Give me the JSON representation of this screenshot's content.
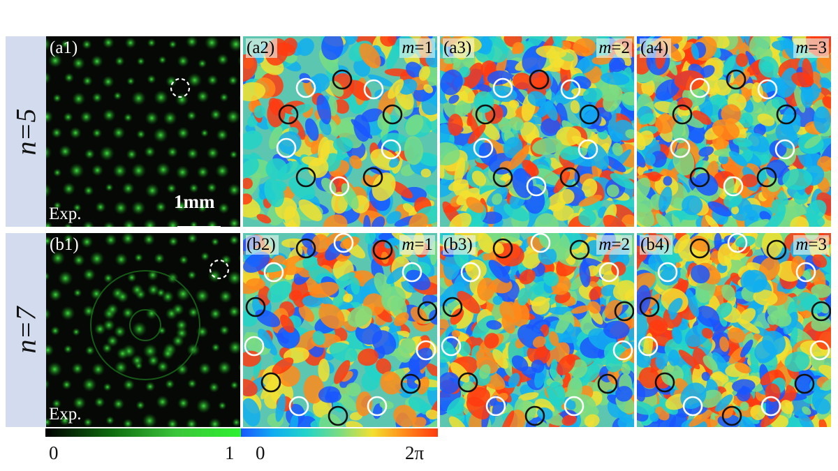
{
  "rows": [
    {
      "label": "n=5",
      "panels": [
        {
          "id": "a1",
          "label": "(a1)",
          "kind": "intensity",
          "m_label": "",
          "exp_label": "Exp.",
          "scale_label": "1mm"
        },
        {
          "id": "a2",
          "label": "(a2)",
          "kind": "phase",
          "m_label": "=1",
          "m_value": 1
        },
        {
          "id": "a3",
          "label": "(a3)",
          "kind": "phase",
          "m_label": "=2",
          "m_value": 2
        },
        {
          "id": "a4",
          "label": "(a4)",
          "kind": "phase",
          "m_label": "=3",
          "m_value": 3
        }
      ]
    },
    {
      "label": "n=7",
      "panels": [
        {
          "id": "b1",
          "label": "(b1)",
          "kind": "intensity",
          "m_label": "",
          "exp_label": "Exp."
        },
        {
          "id": "b2",
          "label": "(b2)",
          "kind": "phase",
          "m_label": "=1",
          "m_value": 1
        },
        {
          "id": "b3",
          "label": "(b3)",
          "kind": "phase",
          "m_label": "=2",
          "m_value": 2
        },
        {
          "id": "b4",
          "label": "(b4)",
          "kind": "phase",
          "m_label": "=3",
          "m_value": 3
        }
      ]
    }
  ],
  "m_symbol": "m",
  "colorbars": {
    "intensity": {
      "min_label": "0",
      "max_label": "1"
    },
    "phase": {
      "min_label": "0",
      "max_label": "2π"
    }
  },
  "colors": {
    "ring_white": "#ffffff",
    "ring_black": "#111111",
    "row_band": "#d3dcee",
    "intensity_green": "#3fe03f"
  }
}
